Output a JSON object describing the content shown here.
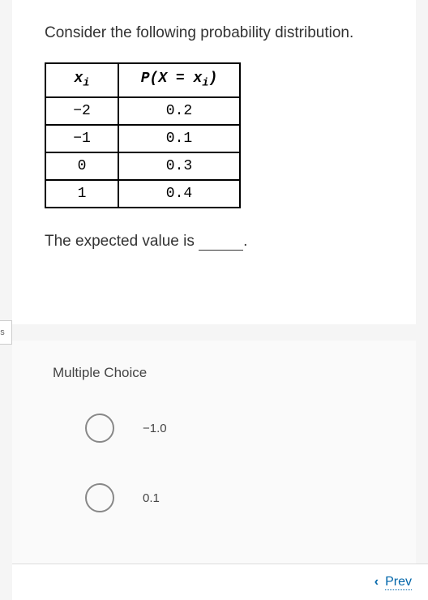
{
  "question": {
    "prompt": "Consider the following probability distribution.",
    "table": {
      "headers": {
        "col1_main": "x",
        "col1_sub": "i",
        "col2_prefix": "P(X = x",
        "col2_sub": "i",
        "col2_suffix": ")"
      },
      "rows": [
        {
          "x": "−2",
          "p": "0.2"
        },
        {
          "x": "−1",
          "p": "0.1"
        },
        {
          "x": "0",
          "p": "0.3"
        },
        {
          "x": "1",
          "p": "0.4"
        }
      ]
    },
    "followup_prefix": "The expected value is ",
    "followup_suffix": "."
  },
  "sidebar": {
    "tab_label": "es"
  },
  "answers": {
    "heading": "Multiple Choice",
    "options": [
      {
        "label": "−1.0"
      },
      {
        "label": "0.1"
      }
    ]
  },
  "nav": {
    "prev_label": "Prev",
    "chevron": "‹"
  },
  "colors": {
    "card_bg": "#ffffff",
    "page_bg": "#f5f5f5",
    "answer_bg": "#fafafa",
    "text": "#333333",
    "link": "#0066aa",
    "border": "#000000"
  }
}
